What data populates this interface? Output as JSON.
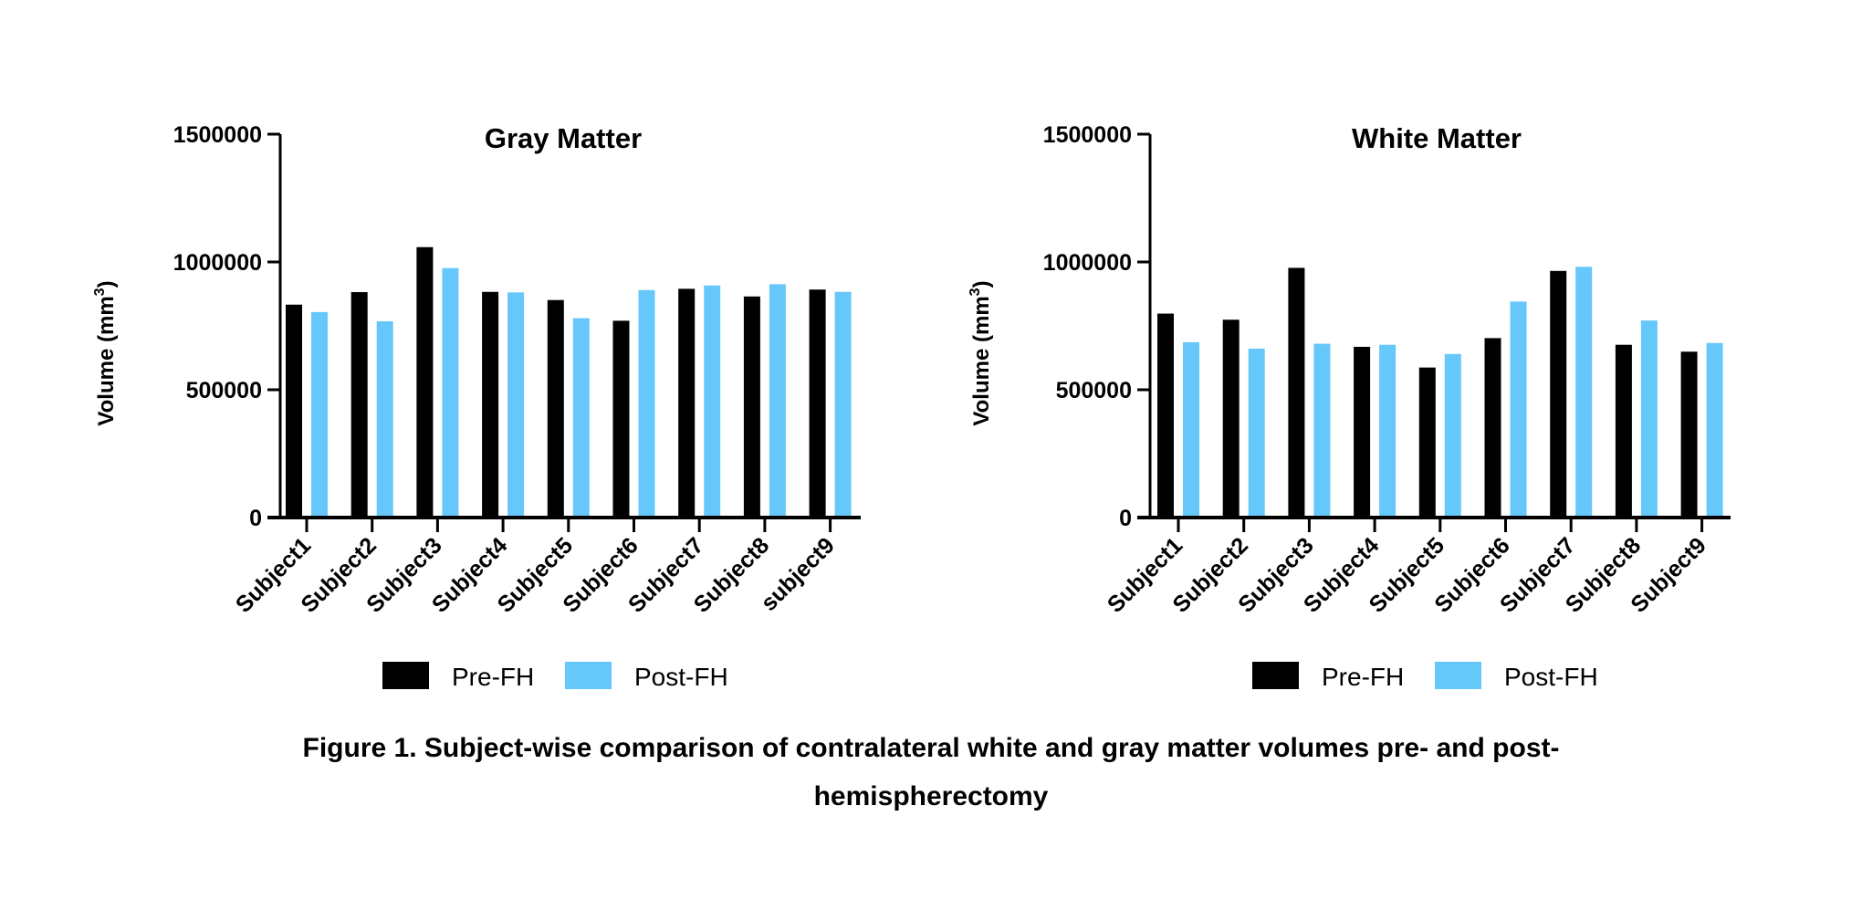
{
  "chart_data": [
    {
      "type": "bar",
      "title": "Gray Matter",
      "ylabel": "Volume (mm",
      "ylabel_sup": "3",
      "ylabel_close": ")",
      "ylim": [
        0,
        1500000
      ],
      "yticks": [
        "0",
        "500000",
        "1000000",
        "1500000"
      ],
      "ytick_values": [
        0,
        500000,
        1000000,
        1500000
      ],
      "categories": [
        "Subject1",
        "Subject2",
        "Subject3",
        "Subject4",
        "Subject5",
        "Subject6",
        "Subject7",
        "Subject8",
        "subject9"
      ],
      "series": [
        {
          "name": "Pre-FH",
          "color": "#000000",
          "values": [
            833000,
            882000,
            1058000,
            883000,
            851000,
            770000,
            895000,
            865000,
            892000
          ]
        },
        {
          "name": "Post-FH",
          "color": "#66c8fa",
          "values": [
            804000,
            768000,
            976000,
            881000,
            780000,
            890000,
            908000,
            913000,
            883000
          ]
        }
      ],
      "legend": [
        "Pre-FH",
        "Post-FH"
      ],
      "legend_position": "bottom"
    },
    {
      "type": "bar",
      "title": "White Matter",
      "ylabel": "Volume (mm",
      "ylabel_sup": "3",
      "ylabel_close": ")",
      "ylim": [
        0,
        1500000
      ],
      "yticks": [
        "0",
        "500000",
        "1000000",
        "1500000"
      ],
      "ytick_values": [
        0,
        500000,
        1000000,
        1500000
      ],
      "categories": [
        "Subject1",
        "Subject2",
        "Subject3",
        "Subject4",
        "Subject5",
        "Subject6",
        "Subject7",
        "Subject8",
        "Subject9"
      ],
      "series": [
        {
          "name": "Pre-FH",
          "color": "#000000",
          "values": [
            798000,
            774000,
            977000,
            668000,
            587000,
            702000,
            965000,
            676000,
            649000
          ]
        },
        {
          "name": "Post-FH",
          "color": "#66c8fa",
          "values": [
            686000,
            661000,
            680000,
            676000,
            640000,
            845000,
            981000,
            771000,
            683000
          ]
        }
      ],
      "legend": [
        "Pre-FH",
        "Post-FH"
      ],
      "legend_position": "bottom"
    }
  ],
  "caption": {
    "line1": "Figure 1. Subject-wise comparison of contralateral white and gray matter volumes pre- and post-",
    "line2": "hemispherectomy"
  }
}
